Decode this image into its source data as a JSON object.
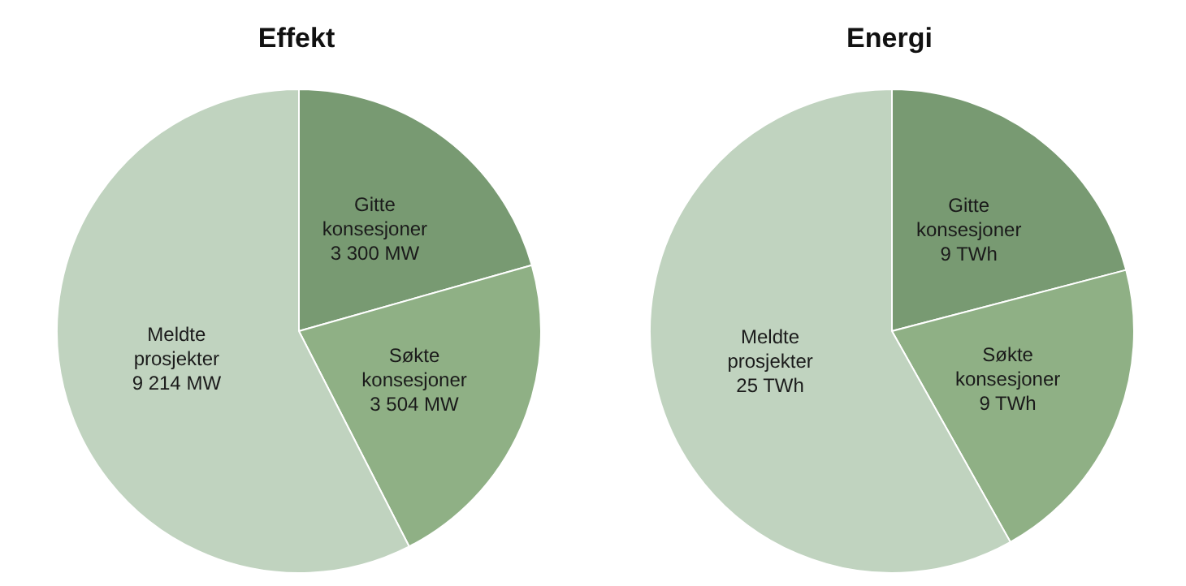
{
  "chart_data": [
    {
      "type": "pie",
      "title": "Effekt",
      "categories": [
        "Gitte konsesjoner",
        "Søkte konsesjoner",
        "Meldte prosjekter"
      ],
      "values": [
        3300,
        3504,
        9214
      ],
      "value_labels": [
        "3 300 MW",
        "3 504 MW",
        "9 214 MW"
      ],
      "colors": [
        "#789a72",
        "#8fb085",
        "#c0d3bf"
      ]
    },
    {
      "type": "pie",
      "title": "Energi",
      "categories": [
        "Gitte konsesjoner",
        "Søkte konsesjoner",
        "Meldte prosjekter"
      ],
      "values": [
        9,
        9,
        25
      ],
      "value_labels": [
        "9 TWh",
        "9 TWh",
        "25 TWh"
      ],
      "colors": [
        "#789a72",
        "#8fb085",
        "#c0d3bf"
      ]
    }
  ]
}
